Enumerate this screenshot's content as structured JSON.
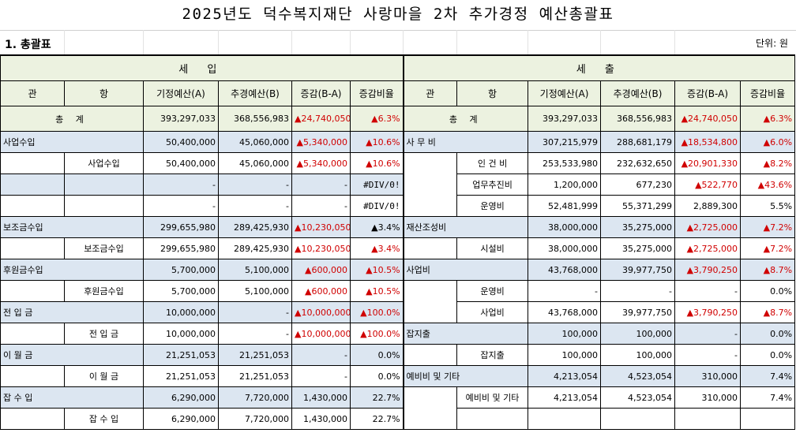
{
  "title": "2025년도 덕수복지재단 사랑마을 2차 추가경정 예산총괄표",
  "section": "1. 총괄표",
  "unit": "단위: 원",
  "income_header": "세  입",
  "expense_header": "세  출",
  "columns": {
    "gwan": "관",
    "hang": "항",
    "base": "기정예산(A)",
    "revised": "추경예산(B)",
    "diff": "증감(B-A)",
    "ratio": "증감비율"
  },
  "total": {
    "label": "총 계",
    "income": {
      "base": "393,297,033",
      "revised": "368,556,983",
      "diff": "▲24,740,050",
      "ratio": "▲6.3%"
    },
    "expense": {
      "base": "393,297,033",
      "revised": "368,556,983",
      "diff": "▲24,740,050",
      "ratio": "▲6.3%"
    }
  },
  "income_rows": [
    {
      "gwan": "사업수입",
      "hang": "",
      "base": "50,400,000",
      "revised": "45,060,000",
      "diff": "▲5,340,000",
      "ratio": "▲10.6%"
    },
    {
      "gwan": "",
      "hang": "사업수입",
      "base": "50,400,000",
      "revised": "45,060,000",
      "diff": "▲5,340,000",
      "ratio": "▲10.6%"
    },
    {
      "gwan": "",
      "hang": "",
      "base": "-",
      "revised": "-",
      "diff": "-",
      "ratio": "#DIV/0!"
    },
    {
      "gwan": "",
      "hang": "",
      "base": "-",
      "revised": "-",
      "diff": "-",
      "ratio": "#DIV/0!"
    },
    {
      "gwan": "보조금수입",
      "hang": "",
      "base": "299,655,980",
      "revised": "289,425,930",
      "diff": "▲10,230,050",
      "ratio": "▲3.4%"
    },
    {
      "gwan": "",
      "hang": "보조금수입",
      "base": "299,655,980",
      "revised": "289,425,930",
      "diff": "▲10,230,050",
      "ratio": "▲3.4%"
    },
    {
      "gwan": "후원금수입",
      "hang": "",
      "base": "5,700,000",
      "revised": "5,100,000",
      "diff": "▲600,000",
      "ratio": "▲10.5%"
    },
    {
      "gwan": "",
      "hang": "후원금수입",
      "base": "5,700,000",
      "revised": "5,100,000",
      "diff": "▲600,000",
      "ratio": "▲10.5%"
    },
    {
      "gwan": "전 입 금",
      "hang": "",
      "base": "10,000,000",
      "revised": "-",
      "diff": "▲10,000,000",
      "ratio": "▲100.0%"
    },
    {
      "gwan": "",
      "hang": "전 입 금",
      "base": "10,000,000",
      "revised": "-",
      "diff": "▲10,000,000",
      "ratio": "▲100.0%"
    },
    {
      "gwan": "이 월 금",
      "hang": "",
      "base": "21,251,053",
      "revised": "21,251,053",
      "diff": "-",
      "ratio": "0.0%"
    },
    {
      "gwan": "",
      "hang": "이 월 금",
      "base": "21,251,053",
      "revised": "21,251,053",
      "diff": "-",
      "ratio": "0.0%"
    },
    {
      "gwan": "잡 수 입",
      "hang": "",
      "base": "6,290,000",
      "revised": "7,720,000",
      "diff": "1,430,000",
      "ratio": "22.7%"
    },
    {
      "gwan": "",
      "hang": "잡 수 입",
      "base": "6,290,000",
      "revised": "7,720,000",
      "diff": "1,430,000",
      "ratio": "22.7%"
    }
  ],
  "expense_rows": [
    {
      "gwan": "사 무 비",
      "hang": "",
      "base": "307,215,979",
      "revised": "288,681,179",
      "diff": "▲18,534,800",
      "ratio": "▲6.0%"
    },
    {
      "gwan": "",
      "hang": "인 건 비",
      "base": "253,533,980",
      "revised": "232,632,650",
      "diff": "▲20,901,330",
      "ratio": "▲8.2%"
    },
    {
      "gwan": "",
      "hang": "업무추진비",
      "base": "1,200,000",
      "revised": "677,230",
      "diff": "▲522,770",
      "ratio": "▲43.6%"
    },
    {
      "gwan": "",
      "hang": "운영비",
      "base": "52,481,999",
      "revised": "55,371,299",
      "diff": "2,889,300",
      "ratio": "5.5%"
    },
    {
      "gwan": "재산조성비",
      "hang": "",
      "base": "38,000,000",
      "revised": "35,275,000",
      "diff": "▲2,725,000",
      "ratio": "▲7.2%"
    },
    {
      "gwan": "",
      "hang": "시설비",
      "base": "38,000,000",
      "revised": "35,275,000",
      "diff": "▲2,725,000",
      "ratio": "▲7.2%"
    },
    {
      "gwan": "사업비",
      "hang": "",
      "base": "43,768,000",
      "revised": "39,977,750",
      "diff": "▲3,790,250",
      "ratio": "▲8.7%"
    },
    {
      "gwan": "",
      "hang": "운영비",
      "base": "-",
      "revised": "-",
      "diff": "-",
      "ratio": "0.0%"
    },
    {
      "gwan": "",
      "hang": "사업비",
      "base": "43,768,000",
      "revised": "39,977,750",
      "diff": "▲3,790,250",
      "ratio": "▲8.7%"
    },
    {
      "gwan": "잡지출",
      "hang": "",
      "base": "100,000",
      "revised": "100,000",
      "diff": "-",
      "ratio": "0.0%"
    },
    {
      "gwan": "",
      "hang": "잡지출",
      "base": "100,000",
      "revised": "100,000",
      "diff": "-",
      "ratio": "0.0%"
    },
    {
      "gwan": "예비비 및 기타",
      "hang": "",
      "base": "4,213,054",
      "revised": "4,523,054",
      "diff": "310,000",
      "ratio": "7.4%"
    },
    {
      "gwan": "",
      "hang": "예비비 및 기타",
      "base": "4,213,054",
      "revised": "4,523,054",
      "diff": "310,000",
      "ratio": "7.4%"
    },
    {
      "gwan": "",
      "hang": "",
      "base": "",
      "revised": "",
      "diff": "",
      "ratio": ""
    }
  ],
  "colors": {
    "header_bg": "#ecf2e0",
    "gwan_row_bg": "#dce6f1",
    "decrease_red": "#d00000"
  }
}
